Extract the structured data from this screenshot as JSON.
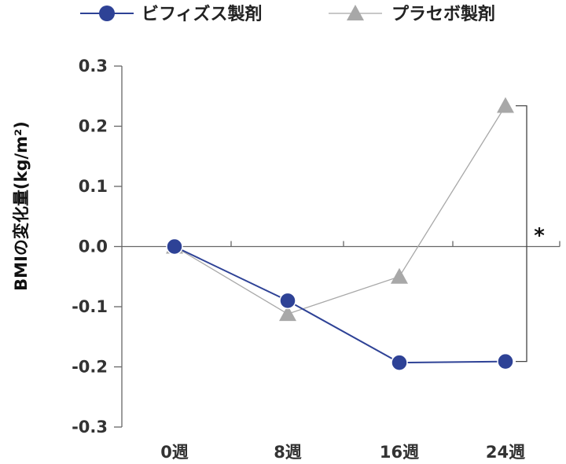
{
  "chart_data": {
    "type": "line",
    "title": "",
    "xlabel": "",
    "ylabel": "BMIの変化量(kg/m²)",
    "categories": [
      "0週",
      "8週",
      "16週",
      "24週"
    ],
    "ylim": [
      -0.3,
      0.3
    ],
    "yticks": [
      0.3,
      0.2,
      0.1,
      0.0,
      -0.1,
      -0.2,
      -0.3
    ],
    "ytick_labels": [
      "0.3",
      "0.2",
      "0.1",
      "0.0",
      "-0.1",
      "-0.2",
      "-0.3"
    ],
    "grid": false,
    "legend_position": "top",
    "series": [
      {
        "name": "ビフィズス製剤",
        "marker": "circle",
        "color": "#2e4296",
        "values": [
          0.0,
          -0.09,
          -0.193,
          -0.191
        ]
      },
      {
        "name": "プラセボ製剤",
        "marker": "triangle",
        "color": "#a8a8a8",
        "values": [
          0.0,
          -0.112,
          -0.05,
          0.234
        ]
      }
    ],
    "annotations": [
      {
        "text": "*",
        "between_series_at": "24週"
      }
    ]
  }
}
